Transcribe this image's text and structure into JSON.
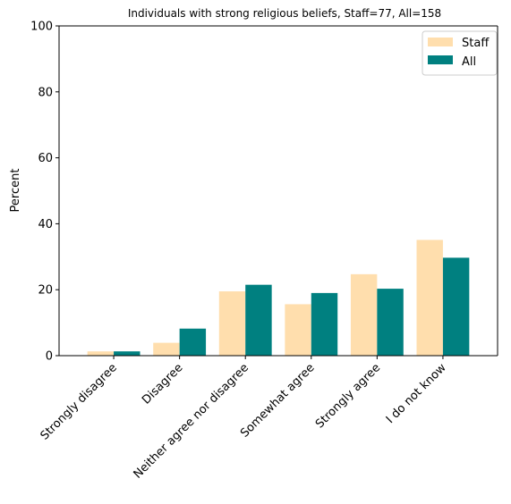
{
  "chart_data": {
    "type": "bar",
    "title": "Individuals with strong religious beliefs, Staff=77, All=158",
    "xlabel": "",
    "ylabel": "Percent",
    "ylim": [
      0,
      100
    ],
    "yticks": [
      0,
      20,
      40,
      60,
      80,
      100
    ],
    "categories": [
      "Strongly disagree",
      "Disagree",
      "Neither agree nor disagree",
      "Somewhat agree",
      "Strongly agree",
      "I do not know"
    ],
    "series": [
      {
        "name": "Staff",
        "color": "#ffdead",
        "values": [
          1.3,
          3.9,
          19.5,
          15.6,
          24.7,
          35.1
        ]
      },
      {
        "name": "All",
        "color": "#008080",
        "values": [
          1.3,
          8.2,
          21.5,
          19.0,
          20.3,
          29.7
        ]
      }
    ],
    "legend": {
      "position": "upper-right"
    },
    "grid": false
  }
}
